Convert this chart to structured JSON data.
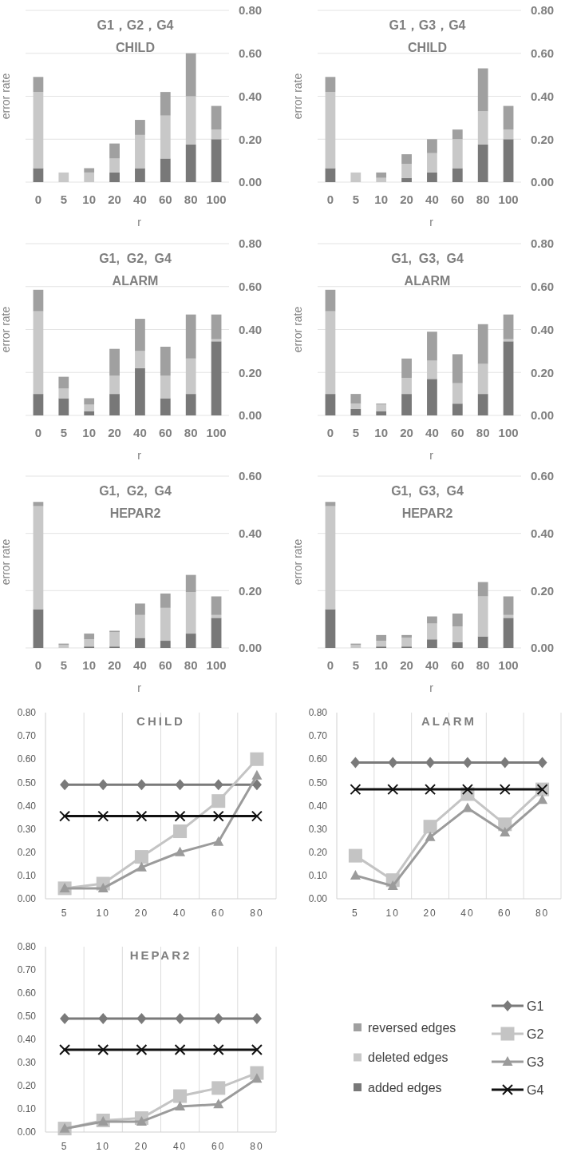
{
  "chart_data": [
    {
      "type": "bar",
      "stacked": true,
      "title": "G1，G2，G4",
      "subtitle": "CHILD",
      "xlabel": "r",
      "ylabel": "error rate",
      "categories": [
        "0",
        "5",
        "10",
        "20",
        "40",
        "60",
        "80",
        "100"
      ],
      "ylim": [
        0,
        0.8
      ],
      "yticks": [
        {
          "value": 0,
          "label": "0.00"
        },
        {
          "value": 0.2,
          "label": "0.20"
        },
        {
          "value": 0.4,
          "label": "0.40"
        },
        {
          "value": 0.6,
          "label": "0.60"
        },
        {
          "value": 0.8,
          "label": "0.80"
        }
      ],
      "grid": "y",
      "series": [
        {
          "color": "#787878",
          "values": [
            0.065,
            0,
            0,
            0.045,
            0.065,
            0.11,
            0.175,
            0.2
          ]
        },
        {
          "color": "#c8c8c8",
          "values": [
            0.355,
            0.045,
            0.045,
            0.065,
            0.155,
            0.2,
            0.225,
            0.045
          ]
        },
        {
          "color": "#a0a0a0",
          "values": [
            0.07,
            0,
            0.02,
            0.07,
            0.07,
            0.11,
            0.2,
            0.11
          ]
        }
      ]
    },
    {
      "type": "bar",
      "stacked": true,
      "title": "G1，G3，G4",
      "subtitle": "CHILD",
      "xlabel": "r",
      "ylabel": "error rate",
      "categories": [
        "0",
        "5",
        "10",
        "20",
        "40",
        "60",
        "80",
        "100"
      ],
      "ylim": [
        0,
        0.8
      ],
      "yticks": [
        {
          "value": 0,
          "label": "0.00"
        },
        {
          "value": 0.2,
          "label": "0.20"
        },
        {
          "value": 0.4,
          "label": "0.40"
        },
        {
          "value": 0.6,
          "label": "0.60"
        },
        {
          "value": 0.8,
          "label": "0.80"
        }
      ],
      "grid": "y",
      "series": [
        {
          "color": "#787878",
          "values": [
            0.065,
            0,
            0,
            0.02,
            0.045,
            0.065,
            0.175,
            0.2
          ]
        },
        {
          "color": "#c8c8c8",
          "values": [
            0.355,
            0.045,
            0.02,
            0.065,
            0.09,
            0.135,
            0.155,
            0.045
          ]
        },
        {
          "color": "#a0a0a0",
          "values": [
            0.07,
            0,
            0.025,
            0.045,
            0.065,
            0.045,
            0.2,
            0.11
          ]
        }
      ]
    },
    {
      "type": "bar",
      "stacked": true,
      "title": "G1,  G2,  G4",
      "subtitle": "ALARM",
      "xlabel": "r",
      "ylabel": "error rate",
      "categories": [
        "0",
        "5",
        "10",
        "20",
        "40",
        "60",
        "80",
        "100"
      ],
      "ylim": [
        0,
        0.8
      ],
      "yticks": [
        {
          "value": 0,
          "label": "0.00"
        },
        {
          "value": 0.2,
          "label": "0.20"
        },
        {
          "value": 0.4,
          "label": "0.40"
        },
        {
          "value": 0.6,
          "label": "0.60"
        },
        {
          "value": 0.8,
          "label": "0.80"
        }
      ],
      "grid": "y",
      "series": [
        {
          "color": "#787878",
          "values": [
            0.1,
            0.08,
            0.02,
            0.1,
            0.22,
            0.08,
            0.1,
            0.345
          ]
        },
        {
          "color": "#c8c8c8",
          "values": [
            0.385,
            0.045,
            0.03,
            0.085,
            0.08,
            0.105,
            0.165,
            0.01
          ]
        },
        {
          "color": "#a0a0a0",
          "values": [
            0.1,
            0.055,
            0.03,
            0.125,
            0.15,
            0.135,
            0.205,
            0.115
          ]
        }
      ]
    },
    {
      "type": "bar",
      "stacked": true,
      "title": "G1,  G3,  G4",
      "subtitle": "ALARM",
      "xlabel": "r",
      "ylabel": "error rate",
      "categories": [
        "0",
        "5",
        "10",
        "20",
        "40",
        "60",
        "80",
        "100"
      ],
      "ylim": [
        0,
        0.8
      ],
      "yticks": [
        {
          "value": 0,
          "label": "0.00"
        },
        {
          "value": 0.2,
          "label": "0.20"
        },
        {
          "value": 0.4,
          "label": "0.40"
        },
        {
          "value": 0.6,
          "label": "0.60"
        },
        {
          "value": 0.8,
          "label": "0.80"
        }
      ],
      "grid": "y",
      "series": [
        {
          "color": "#787878",
          "values": [
            0.1,
            0.03,
            0.02,
            0.1,
            0.17,
            0.055,
            0.1,
            0.345
          ]
        },
        {
          "color": "#c8c8c8",
          "values": [
            0.385,
            0.025,
            0.03,
            0.075,
            0.085,
            0.095,
            0.14,
            0.01
          ]
        },
        {
          "color": "#a0a0a0",
          "values": [
            0.1,
            0.045,
            0.005,
            0.09,
            0.135,
            0.135,
            0.185,
            0.115
          ]
        }
      ]
    },
    {
      "type": "bar",
      "stacked": true,
      "title": "G1,  G2,  G4",
      "subtitle": "HEPAR2",
      "xlabel": "r",
      "ylabel": "error rate",
      "categories": [
        "0",
        "5",
        "10",
        "20",
        "40",
        "60",
        "80",
        "100"
      ],
      "ylim": [
        0,
        0.6
      ],
      "yticks": [
        {
          "value": 0,
          "label": "0.00"
        },
        {
          "value": 0.2,
          "label": "0.20"
        },
        {
          "value": 0.4,
          "label": "0.40"
        },
        {
          "value": 0.6,
          "label": "0.60"
        }
      ],
      "grid": "y",
      "series": [
        {
          "color": "#787878",
          "values": [
            0.135,
            0,
            0.005,
            0.005,
            0.035,
            0.025,
            0.05,
            0.105
          ]
        },
        {
          "color": "#c8c8c8",
          "values": [
            0.36,
            0.01,
            0.025,
            0.05,
            0.08,
            0.115,
            0.145,
            0.01
          ]
        },
        {
          "color": "#a0a0a0",
          "values": [
            0.015,
            0.005,
            0.02,
            0.005,
            0.04,
            0.05,
            0.06,
            0.065
          ]
        }
      ]
    },
    {
      "type": "bar",
      "stacked": true,
      "title": "G1,  G3,  G4",
      "subtitle": "HEPAR2",
      "xlabel": "r",
      "ylabel": "error rate",
      "categories": [
        "0",
        "5",
        "10",
        "20",
        "40",
        "60",
        "80",
        "100"
      ],
      "ylim": [
        0,
        0.6
      ],
      "yticks": [
        {
          "value": 0,
          "label": "0.00"
        },
        {
          "value": 0.2,
          "label": "0.20"
        },
        {
          "value": 0.4,
          "label": "0.40"
        },
        {
          "value": 0.6,
          "label": "0.60"
        }
      ],
      "grid": "y",
      "legend": "bottom",
      "series": [
        {
          "name": "added edges",
          "color": "#787878",
          "values": [
            0.135,
            0,
            0.005,
            0.005,
            0.03,
            0.02,
            0.04,
            0.105
          ]
        },
        {
          "name": "deleted edges",
          "color": "#c8c8c8",
          "values": [
            0.36,
            0.01,
            0.02,
            0.03,
            0.055,
            0.055,
            0.14,
            0.01
          ]
        },
        {
          "name": "reversed edges",
          "color": "#a0a0a0",
          "values": [
            0.015,
            0.005,
            0.02,
            0.01,
            0.025,
            0.045,
            0.05,
            0.065
          ]
        }
      ]
    },
    {
      "type": "line",
      "title": "CHILD",
      "categories": [
        "5",
        "10",
        "20",
        "40",
        "60",
        "80"
      ],
      "ylim": [
        0,
        0.8
      ],
      "yticks": [
        {
          "value": 0,
          "label": "0.00"
        },
        {
          "value": 0.1,
          "label": "0.10"
        },
        {
          "value": 0.2,
          "label": "0.20"
        },
        {
          "value": 0.3,
          "label": "0.30"
        },
        {
          "value": 0.4,
          "label": "0.40"
        },
        {
          "value": 0.5,
          "label": "0.50"
        },
        {
          "value": 0.6,
          "label": "0.60"
        },
        {
          "value": 0.7,
          "label": "0.70"
        },
        {
          "value": 0.8,
          "label": "0.80"
        }
      ],
      "grid": "x",
      "line_style": "solid",
      "series": [
        {
          "color": "#7a7a7a",
          "marker": "diamond",
          "values": [
            0.49,
            0.49,
            0.49,
            0.49,
            0.49,
            0.49
          ]
        },
        {
          "color": "#c4c4c4",
          "marker": "square",
          "values": [
            0.045,
            0.065,
            0.18,
            0.29,
            0.42,
            0.6
          ]
        },
        {
          "color": "#9b9b9b",
          "marker": "triangle",
          "values": [
            0.045,
            0.045,
            0.135,
            0.2,
            0.245,
            0.53
          ]
        },
        {
          "color": "#111111",
          "marker": "cross",
          "values": [
            0.355,
            0.355,
            0.355,
            0.355,
            0.355,
            0.355
          ]
        }
      ]
    },
    {
      "type": "line",
      "title": "ALARM",
      "categories": [
        "5",
        "10",
        "20",
        "40",
        "60",
        "80"
      ],
      "ylim": [
        0,
        0.8
      ],
      "yticks": [
        {
          "value": 0,
          "label": "0.00"
        },
        {
          "value": 0.1,
          "label": "0.10"
        },
        {
          "value": 0.2,
          "label": "0.20"
        },
        {
          "value": 0.3,
          "label": "0.30"
        },
        {
          "value": 0.4,
          "label": "0.40"
        },
        {
          "value": 0.5,
          "label": "0.50"
        },
        {
          "value": 0.6,
          "label": "0.60"
        },
        {
          "value": 0.7,
          "label": "0.70"
        },
        {
          "value": 0.8,
          "label": "0.80"
        }
      ],
      "grid": "x",
      "line_style": "solid",
      "series": [
        {
          "color": "#7a7a7a",
          "marker": "diamond",
          "values": [
            0.585,
            0.585,
            0.585,
            0.585,
            0.585,
            0.585
          ]
        },
        {
          "color": "#c4c4c4",
          "marker": "square",
          "values": [
            0.185,
            0.08,
            0.31,
            0.45,
            0.32,
            0.47
          ]
        },
        {
          "color": "#9b9b9b",
          "marker": "triangle",
          "values": [
            0.1,
            0.055,
            0.265,
            0.39,
            0.285,
            0.425
          ]
        },
        {
          "color": "#111111",
          "marker": "cross",
          "values": [
            0.47,
            0.47,
            0.47,
            0.47,
            0.47,
            0.47
          ]
        }
      ]
    },
    {
      "type": "line",
      "title": "HEPAR2",
      "categories": [
        "5",
        "10",
        "20",
        "40",
        "60",
        "80"
      ],
      "ylim": [
        0,
        0.8
      ],
      "yticks": [
        {
          "value": 0,
          "label": "0.00"
        },
        {
          "value": 0.1,
          "label": "0.10"
        },
        {
          "value": 0.2,
          "label": "0.20"
        },
        {
          "value": 0.3,
          "label": "0.30"
        },
        {
          "value": 0.4,
          "label": "0.40"
        },
        {
          "value": 0.5,
          "label": "0.50"
        },
        {
          "value": 0.6,
          "label": "0.60"
        },
        {
          "value": 0.7,
          "label": "0.70"
        },
        {
          "value": 0.8,
          "label": "0.80"
        }
      ],
      "grid": "x",
      "line_style": "solid",
      "legend": "right",
      "series": [
        {
          "name": "G1",
          "color": "#7a7a7a",
          "marker": "diamond",
          "values": [
            0.49,
            0.49,
            0.49,
            0.49,
            0.49,
            0.49
          ]
        },
        {
          "name": "G2",
          "color": "#c4c4c4",
          "marker": "square",
          "values": [
            0.015,
            0.05,
            0.06,
            0.155,
            0.19,
            0.255
          ]
        },
        {
          "name": "G3",
          "color": "#9b9b9b",
          "marker": "triangle",
          "values": [
            0.015,
            0.045,
            0.045,
            0.11,
            0.12,
            0.23
          ]
        },
        {
          "name": "G4",
          "color": "#111111",
          "marker": "cross",
          "values": [
            0.355,
            0.355,
            0.355,
            0.355,
            0.355,
            0.355
          ]
        }
      ]
    }
  ]
}
